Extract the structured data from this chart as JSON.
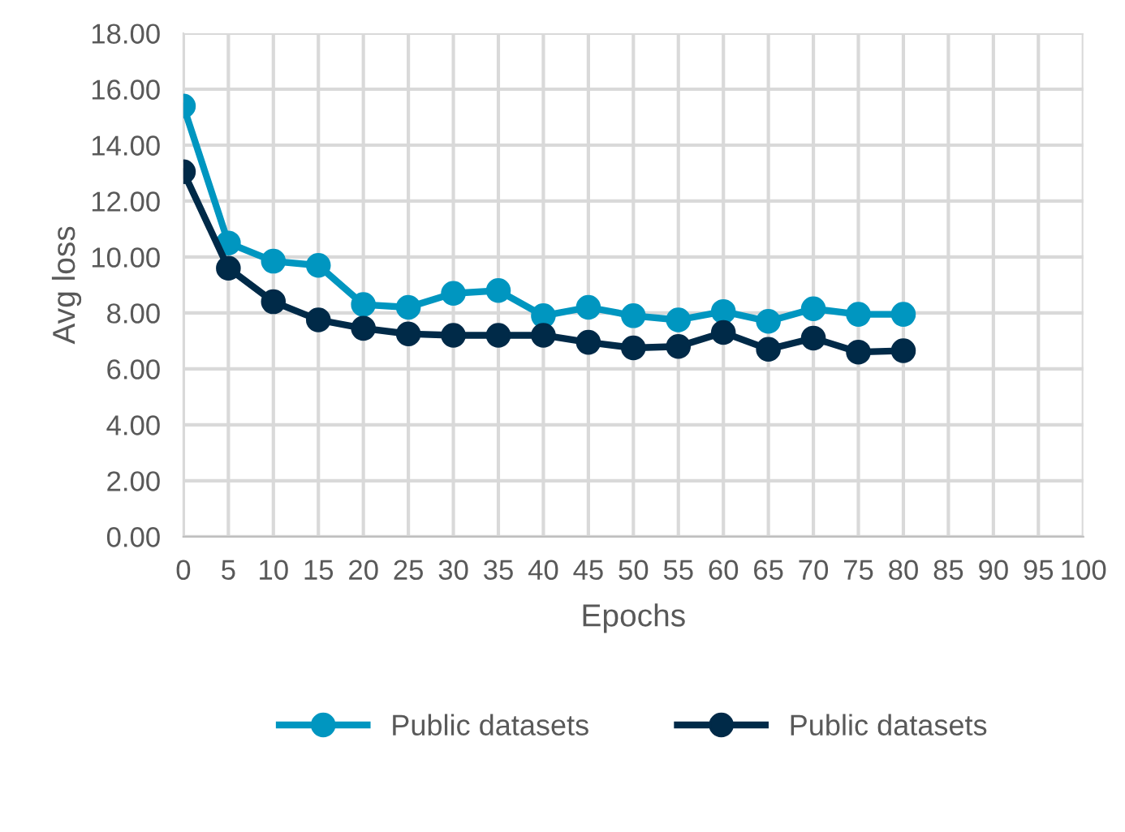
{
  "chart_data": {
    "type": "line",
    "xlabel": "Epochs",
    "ylabel": "Avg loss",
    "categories": [
      "0",
      "5",
      "10",
      "15",
      "20",
      "25",
      "30",
      "35",
      "40",
      "45",
      "50",
      "55",
      "60",
      "65",
      "70",
      "75",
      "80",
      "85",
      "90",
      "95",
      "100"
    ],
    "series": [
      {
        "name": "Public datasets",
        "color": "#0096c0",
        "values": [
          15.4,
          10.5,
          9.85,
          9.7,
          8.3,
          8.2,
          8.7,
          8.8,
          7.9,
          8.2,
          7.9,
          7.75,
          8.05,
          7.7,
          8.15,
          7.95,
          7.95,
          null,
          null,
          null,
          null
        ]
      },
      {
        "name": "Public datasets",
        "color": "#002a48",
        "values": [
          13.05,
          9.6,
          8.4,
          7.75,
          7.45,
          7.25,
          7.2,
          7.2,
          7.2,
          6.95,
          6.75,
          6.8,
          7.3,
          6.7,
          7.1,
          6.6,
          6.65,
          null,
          null,
          null,
          null
        ]
      }
    ],
    "ylim": [
      0,
      18
    ],
    "yticks": [
      {
        "value": 0,
        "label": "0.00"
      },
      {
        "value": 2,
        "label": "2.00"
      },
      {
        "value": 4,
        "label": "4.00"
      },
      {
        "value": 6,
        "label": "6.00"
      },
      {
        "value": 8,
        "label": "8.00"
      },
      {
        "value": 10,
        "label": "10.00"
      },
      {
        "value": 12,
        "label": "12.00"
      },
      {
        "value": 14,
        "label": "14.00"
      },
      {
        "value": 16,
        "label": "16.00"
      },
      {
        "value": 18,
        "label": "18.00"
      }
    ],
    "grid": true,
    "legend": "bottom",
    "marker": "circle",
    "line_style": "solid"
  }
}
